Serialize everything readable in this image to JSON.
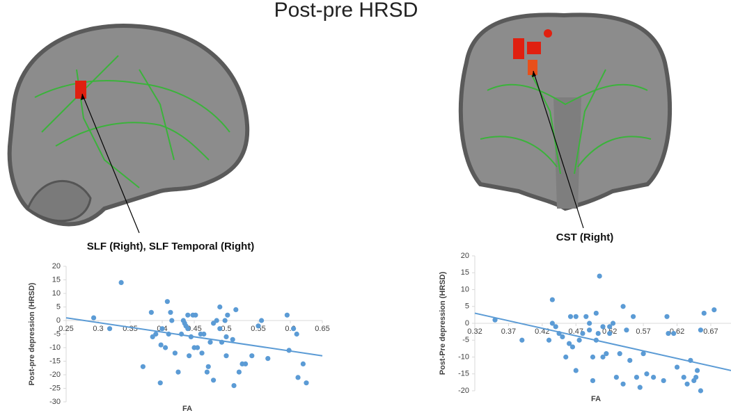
{
  "title": "Post-pre HRSD",
  "chart_data": [
    {
      "type": "scatter",
      "annotation": "SLF (Right), SLF Temporal (Right)",
      "x_label": "FA",
      "y_label": "Post-pre depression (HRSD)",
      "color": "#5b9bd5",
      "xlim": [
        0.25,
        0.65
      ],
      "ylim": [
        -30,
        20
      ],
      "xticks": [
        0.25,
        0.3,
        0.35,
        0.4,
        0.45,
        0.5,
        0.55,
        0.6,
        0.65
      ],
      "yticks": [
        -30,
        -25,
        -20,
        -15,
        -10,
        -5,
        0,
        5,
        10,
        15,
        20
      ],
      "x": [
        0.293,
        0.318,
        0.336,
        0.37,
        0.383,
        0.385,
        0.39,
        0.397,
        0.398,
        0.4,
        0.405,
        0.408,
        0.41,
        0.413,
        0.415,
        0.42,
        0.425,
        0.43,
        0.433,
        0.435,
        0.437,
        0.44,
        0.44,
        0.442,
        0.445,
        0.448,
        0.45,
        0.452,
        0.455,
        0.46,
        0.462,
        0.465,
        0.47,
        0.472,
        0.475,
        0.48,
        0.48,
        0.485,
        0.49,
        0.49,
        0.493,
        0.498,
        0.5,
        0.5,
        0.502,
        0.51,
        0.512,
        0.515,
        0.52,
        0.525,
        0.53,
        0.54,
        0.55,
        0.555,
        0.565,
        0.595,
        0.598,
        0.605,
        0.61,
        0.612,
        0.62,
        0.625
      ],
      "values": [
        1,
        -3,
        14,
        -17,
        3,
        -6,
        -5,
        -23,
        -9,
        -3,
        -10,
        7,
        -5,
        3,
        0,
        -12,
        -19,
        -5,
        0,
        -1,
        -2,
        2,
        -3,
        -13,
        -6,
        2,
        -10,
        2,
        -10,
        -5,
        -12,
        -5,
        -19,
        -17,
        -8,
        -22,
        -1,
        0,
        5,
        -3,
        -8,
        0,
        -6,
        -13,
        2,
        -7,
        -24,
        4,
        -19,
        -16,
        -16,
        -13,
        -2,
        0,
        -14,
        2,
        -11,
        -3,
        -5,
        -21,
        -16,
        -23
      ],
      "trendline": {
        "x": [
          0.25,
          0.65
        ],
        "y": [
          1,
          -13
        ],
        "color": "#5b9bd5"
      }
    },
    {
      "type": "scatter",
      "annotation": "CST (Right)",
      "x_label": "FA",
      "y_label": "Post-Pre depression (HRSD)",
      "color": "#5b9bd5",
      "xlim": [
        0.32,
        0.7
      ],
      "ylim": [
        -20,
        20
      ],
      "xticks": [
        0.32,
        0.37,
        0.42,
        0.47,
        0.52,
        0.57,
        0.62,
        0.67
      ],
      "yticks": [
        -20,
        -15,
        -10,
        -5,
        0,
        5,
        10,
        15,
        20
      ],
      "x": [
        0.35,
        0.39,
        0.43,
        0.435,
        0.435,
        0.44,
        0.445,
        0.45,
        0.455,
        0.46,
        0.462,
        0.465,
        0.47,
        0.47,
        0.475,
        0.48,
        0.485,
        0.49,
        0.49,
        0.495,
        0.495,
        0.5,
        0.5,
        0.503,
        0.505,
        0.51,
        0.51,
        0.515,
        0.52,
        0.52,
        0.525,
        0.53,
        0.535,
        0.54,
        0.54,
        0.545,
        0.55,
        0.555,
        0.56,
        0.565,
        0.57,
        0.575,
        0.585,
        0.6,
        0.605,
        0.607,
        0.615,
        0.62,
        0.63,
        0.635,
        0.64,
        0.645,
        0.648,
        0.65,
        0.655,
        0.655,
        0.66,
        0.675
      ],
      "values": [
        1,
        -5,
        -5,
        7,
        0,
        -1,
        -3,
        -4,
        -10,
        -6,
        2,
        -7,
        2,
        -14,
        -5,
        -3,
        2,
        0,
        -2,
        -10,
        -17,
        3,
        -5,
        -3,
        14,
        -1,
        -10,
        -9,
        -3,
        -1,
        0,
        -16,
        -9,
        5,
        -18,
        -2,
        -11,
        2,
        -16,
        -19,
        -9,
        -15,
        -16,
        -17,
        2,
        -3,
        -3,
        -13,
        -16,
        -18,
        -11,
        -17,
        -16,
        -14,
        -20,
        -2,
        3,
        4
      ],
      "trendline": {
        "x": [
          0.32,
          0.7
        ],
        "y": [
          3,
          -14
        ],
        "color": "#5b9bd5"
      }
    }
  ]
}
